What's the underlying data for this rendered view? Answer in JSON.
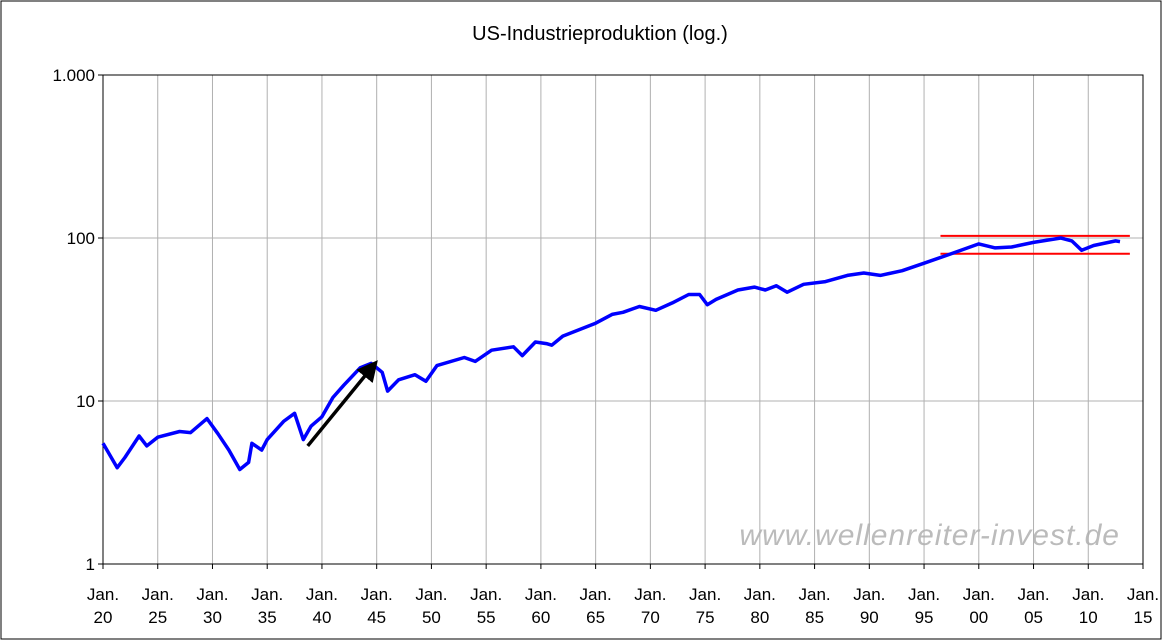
{
  "chart_data": {
    "type": "line",
    "title": "US-Industrieproduktion (log.)",
    "watermark": "www.wellenreiter-invest.de",
    "log_y": true,
    "grid": true,
    "xlim": [
      1920,
      2015
    ],
    "ylim": [
      1,
      1000
    ],
    "yticks": [
      1,
      10,
      100,
      {
        "value": 1000,
        "label": "1.000"
      }
    ],
    "xticks": [
      {
        "value": 1920,
        "label": "Jan. 20"
      },
      {
        "value": 1925,
        "label": "Jan. 25"
      },
      {
        "value": 1930,
        "label": "Jan. 30"
      },
      {
        "value": 1935,
        "label": "Jan. 35"
      },
      {
        "value": 1940,
        "label": "Jan. 40"
      },
      {
        "value": 1945,
        "label": "Jan. 45"
      },
      {
        "value": 1950,
        "label": "Jan. 50"
      },
      {
        "value": 1955,
        "label": "Jan. 55"
      },
      {
        "value": 1960,
        "label": "Jan. 60"
      },
      {
        "value": 1965,
        "label": "Jan. 65"
      },
      {
        "value": 1970,
        "label": "Jan. 70"
      },
      {
        "value": 1975,
        "label": "Jan. 75"
      },
      {
        "value": 1980,
        "label": "Jan. 80"
      },
      {
        "value": 1985,
        "label": "Jan. 85"
      },
      {
        "value": 1990,
        "label": "Jan. 90"
      },
      {
        "value": 1995,
        "label": "Jan. 95"
      },
      {
        "value": 2000,
        "label": "Jan. 00"
      },
      {
        "value": 2005,
        "label": "Jan. 05"
      },
      {
        "value": 2010,
        "label": "Jan. 10"
      },
      {
        "value": 2015,
        "label": "Jan. 15"
      }
    ],
    "series": [
      {
        "color": "#0000ff",
        "x": [
          1920,
          1921.3,
          1922,
          1923.3,
          1924,
          1925,
          1927,
          1928,
          1929.5,
          1930.5,
          1931.5,
          1932.5,
          1933.3,
          1933.6,
          1934.5,
          1935,
          1936.5,
          1937.5,
          1938.3,
          1939,
          1940,
          1941,
          1942,
          1943.5,
          1944.5,
          1945.5,
          1946,
          1947,
          1948.5,
          1949.5,
          1950.5,
          1953,
          1954,
          1955.5,
          1957.5,
          1958.3,
          1959.5,
          1960.5,
          1961,
          1962,
          1965,
          1966.5,
          1967.5,
          1969,
          1970.5,
          1972,
          1973.5,
          1974.5,
          1975.2,
          1976,
          1978,
          1979.5,
          1980.5,
          1981.5,
          1982.5,
          1984,
          1986,
          1988,
          1989.5,
          1991,
          1993,
          1995,
          1997,
          2000,
          2001.5,
          2003,
          2005,
          2007.5,
          2008.5,
          2009.4,
          2010.5,
          2012.5,
          2012.9
        ],
        "values": [
          5.5,
          3.9,
          4.5,
          6.1,
          5.3,
          6.0,
          6.5,
          6.4,
          7.8,
          6.3,
          5.0,
          3.8,
          4.2,
          5.5,
          5.0,
          5.8,
          7.5,
          8.4,
          5.8,
          7,
          8,
          10.5,
          12.5,
          16,
          17,
          15,
          11.5,
          13.5,
          14.5,
          13.2,
          16.5,
          18.5,
          17.5,
          20.5,
          21.5,
          19,
          23,
          22.5,
          22,
          25,
          30,
          34,
          35,
          38,
          36,
          40,
          45,
          45,
          39,
          42,
          48,
          50,
          48,
          51,
          46.5,
          52,
          54,
          59,
          61,
          59,
          63,
          70,
          78,
          92,
          87,
          88,
          94,
          100,
          96,
          84,
          90,
          96,
          95
        ]
      }
    ],
    "hlines": [
      {
        "value": 103,
        "x": [
          1996.5,
          2013.8
        ],
        "color": "#ff0000"
      },
      {
        "value": 80,
        "x": [
          1996.5,
          2013.8
        ],
        "color": "#ff0000"
      }
    ],
    "arrow": {
      "x": [
        1938.7,
        1944.7
      ],
      "values": [
        5.3,
        16.5
      ],
      "color": "#000000"
    }
  }
}
